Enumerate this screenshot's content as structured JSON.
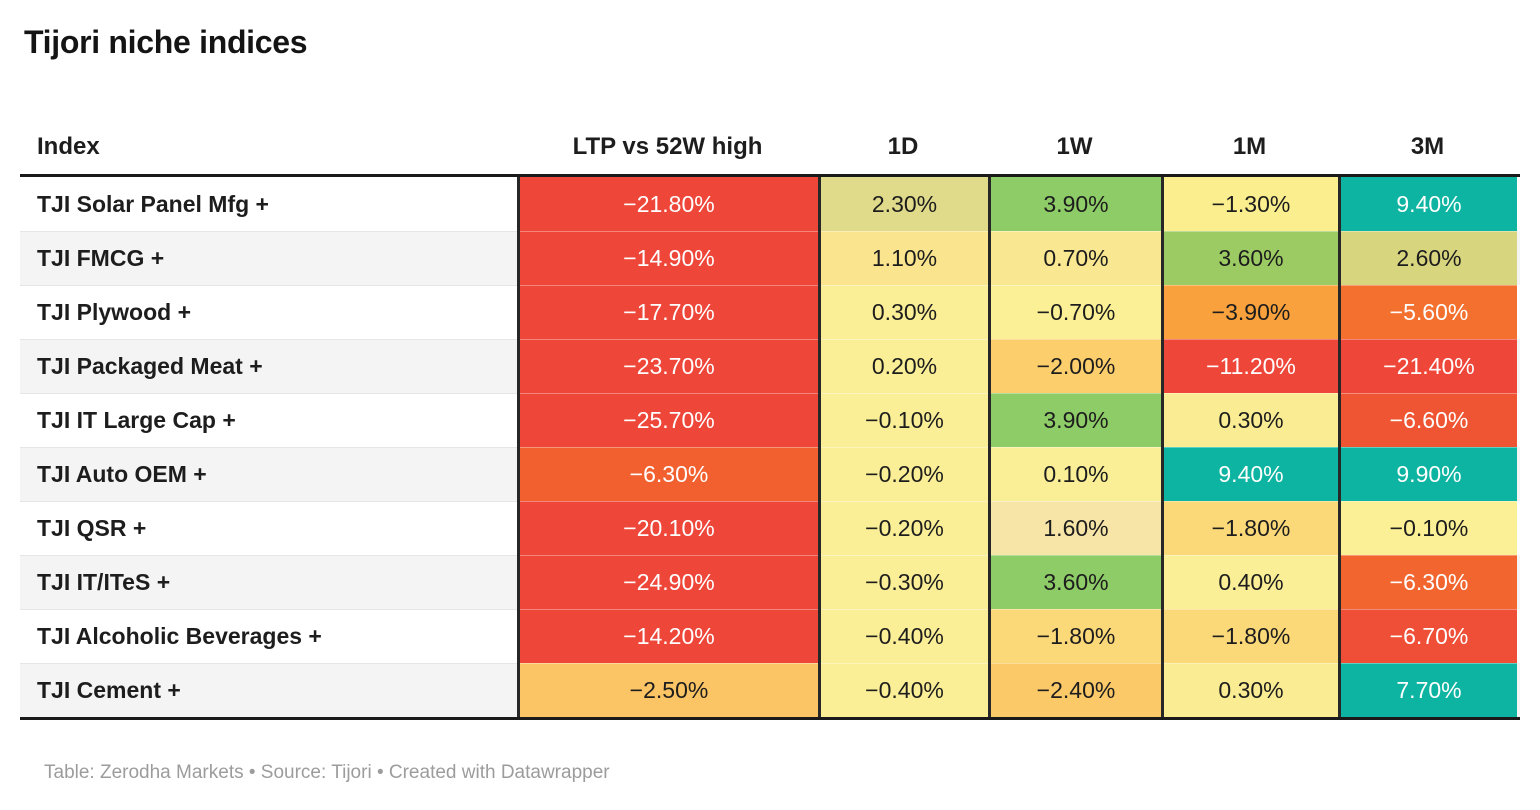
{
  "title": "Tijori niche indices",
  "footer": "Table: Zerodha Markets • Source: Tijori • Created with Datawrapper",
  "accent_colors": {
    "strong_negative": "#ee4639",
    "negative_orange": "#f2602f",
    "mild_negative_amber": "#fbc464",
    "neutral_yellow": "#faee96",
    "positive_khaki": "#e0db8b",
    "positive_green": "#8ecc68",
    "strong_positive_teal": "#0db4a1",
    "header_rule": "#1a1a1a",
    "alt_row": "#f4f4f4",
    "footer_text": "#9c9c9c"
  },
  "table": {
    "columns": [
      "Index",
      "LTP vs 52W high",
      "1D",
      "1W",
      "1M",
      "3M"
    ],
    "rows": [
      {
        "index": "TJI Solar Panel Mfg +",
        "cells": [
          {
            "v": "−21.80%",
            "bg": "#ee4639",
            "fg": "#ffffff"
          },
          {
            "v": "2.30%",
            "bg": "#e0db8b",
            "fg": "#1d1d1d"
          },
          {
            "v": "3.90%",
            "bg": "#8ecc68",
            "fg": "#1d1d1d"
          },
          {
            "v": "−1.30%",
            "bg": "#faee8e",
            "fg": "#1d1d1d"
          },
          {
            "v": "9.40%",
            "bg": "#0db4a1",
            "fg": "#ffffff"
          }
        ]
      },
      {
        "index": "TJI FMCG +",
        "cells": [
          {
            "v": "−14.90%",
            "bg": "#ee4639",
            "fg": "#ffffff"
          },
          {
            "v": "1.10%",
            "bg": "#fae48e",
            "fg": "#1d1d1d"
          },
          {
            "v": "0.70%",
            "bg": "#fae791",
            "fg": "#1d1d1d"
          },
          {
            "v": "3.60%",
            "bg": "#9ccb63",
            "fg": "#1d1d1d"
          },
          {
            "v": "2.60%",
            "bg": "#d8d57f",
            "fg": "#1d1d1d"
          }
        ]
      },
      {
        "index": "TJI Plywood +",
        "cells": [
          {
            "v": "−17.70%",
            "bg": "#ee4639",
            "fg": "#ffffff"
          },
          {
            "v": "0.30%",
            "bg": "#faee96",
            "fg": "#1d1d1d"
          },
          {
            "v": "−0.70%",
            "bg": "#fbf095",
            "fg": "#1d1d1d"
          },
          {
            "v": "−3.90%",
            "bg": "#f9a13c",
            "fg": "#1d1d1d"
          },
          {
            "v": "−5.60%",
            "bg": "#f3702f",
            "fg": "#ffffff"
          }
        ]
      },
      {
        "index": "TJI Packaged Meat +",
        "cells": [
          {
            "v": "−23.70%",
            "bg": "#ee4639",
            "fg": "#ffffff"
          },
          {
            "v": "0.20%",
            "bg": "#faee96",
            "fg": "#1d1d1d"
          },
          {
            "v": "−2.00%",
            "bg": "#fcce6c",
            "fg": "#1d1d1d"
          },
          {
            "v": "−11.20%",
            "bg": "#ee4639",
            "fg": "#ffffff"
          },
          {
            "v": "−21.40%",
            "bg": "#ee4639",
            "fg": "#ffffff"
          }
        ]
      },
      {
        "index": "TJI IT Large Cap +",
        "cells": [
          {
            "v": "−25.70%",
            "bg": "#ee4639",
            "fg": "#ffffff"
          },
          {
            "v": "−0.10%",
            "bg": "#faee96",
            "fg": "#1d1d1d"
          },
          {
            "v": "3.90%",
            "bg": "#8ecc68",
            "fg": "#1d1d1d"
          },
          {
            "v": "0.30%",
            "bg": "#faec92",
            "fg": "#1d1d1d"
          },
          {
            "v": "−6.60%",
            "bg": "#ef5532",
            "fg": "#ffffff"
          }
        ]
      },
      {
        "index": "TJI Auto OEM +",
        "cells": [
          {
            "v": "−6.30%",
            "bg": "#f2602f",
            "fg": "#ffffff"
          },
          {
            "v": "−0.20%",
            "bg": "#faee96",
            "fg": "#1d1d1d"
          },
          {
            "v": "0.10%",
            "bg": "#faee96",
            "fg": "#1d1d1d"
          },
          {
            "v": "9.40%",
            "bg": "#0db4a1",
            "fg": "#ffffff"
          },
          {
            "v": "9.90%",
            "bg": "#0db4a1",
            "fg": "#ffffff"
          }
        ]
      },
      {
        "index": "TJI QSR +",
        "cells": [
          {
            "v": "−20.10%",
            "bg": "#ee4639",
            "fg": "#ffffff"
          },
          {
            "v": "−0.20%",
            "bg": "#faee96",
            "fg": "#1d1d1d"
          },
          {
            "v": "1.60%",
            "bg": "#f7e5a8",
            "fg": "#1d1d1d"
          },
          {
            "v": "−1.80%",
            "bg": "#fbd878",
            "fg": "#1d1d1d"
          },
          {
            "v": "−0.10%",
            "bg": "#fbf095",
            "fg": "#1d1d1d"
          }
        ]
      },
      {
        "index": "TJI IT/ITeS +",
        "cells": [
          {
            "v": "−24.90%",
            "bg": "#ee4639",
            "fg": "#ffffff"
          },
          {
            "v": "−0.30%",
            "bg": "#faee96",
            "fg": "#1d1d1d"
          },
          {
            "v": "3.60%",
            "bg": "#8ecc68",
            "fg": "#1d1d1d"
          },
          {
            "v": "0.40%",
            "bg": "#faee96",
            "fg": "#1d1d1d"
          },
          {
            "v": "−6.30%",
            "bg": "#f2652f",
            "fg": "#ffffff"
          }
        ]
      },
      {
        "index": "TJI Alcoholic Beverages +",
        "cells": [
          {
            "v": "−14.20%",
            "bg": "#ee4639",
            "fg": "#ffffff"
          },
          {
            "v": "−0.40%",
            "bg": "#faee96",
            "fg": "#1d1d1d"
          },
          {
            "v": "−1.80%",
            "bg": "#fbd878",
            "fg": "#1d1d1d"
          },
          {
            "v": "−1.80%",
            "bg": "#fbd878",
            "fg": "#1d1d1d"
          },
          {
            "v": "−6.70%",
            "bg": "#ee4f36",
            "fg": "#ffffff"
          }
        ]
      },
      {
        "index": "TJI Cement +",
        "cells": [
          {
            "v": "−2.50%",
            "bg": "#fbc464",
            "fg": "#1d1d1d"
          },
          {
            "v": "−0.40%",
            "bg": "#faee96",
            "fg": "#1d1d1d"
          },
          {
            "v": "−2.40%",
            "bg": "#fcc968",
            "fg": "#1d1d1d"
          },
          {
            "v": "0.30%",
            "bg": "#faec92",
            "fg": "#1d1d1d"
          },
          {
            "v": "7.70%",
            "bg": "#0db4a1",
            "fg": "#ffffff"
          }
        ]
      }
    ]
  },
  "chart_data": {
    "type": "table",
    "title": "Tijori niche indices",
    "columns": [
      "Index",
      "LTP vs 52W high",
      "1D",
      "1W",
      "1M",
      "3M"
    ],
    "rows": [
      [
        "TJI Solar Panel Mfg +",
        -21.8,
        2.3,
        3.9,
        -1.3,
        9.4
      ],
      [
        "TJI FMCG +",
        -14.9,
        1.1,
        0.7,
        3.6,
        2.6
      ],
      [
        "TJI Plywood +",
        -17.7,
        0.3,
        -0.7,
        -3.9,
        -5.6
      ],
      [
        "TJI Packaged Meat +",
        -23.7,
        0.2,
        -2.0,
        -11.2,
        -21.4
      ],
      [
        "TJI IT Large Cap +",
        -25.7,
        -0.1,
        3.9,
        0.3,
        -6.6
      ],
      [
        "TJI Auto OEM +",
        -6.3,
        -0.2,
        0.1,
        9.4,
        9.9
      ],
      [
        "TJI QSR +",
        -20.1,
        -0.2,
        1.6,
        -1.8,
        -0.1
      ],
      [
        "TJI IT/ITeS +",
        -24.9,
        -0.3,
        3.6,
        0.4,
        -6.3
      ],
      [
        "TJI Alcoholic Beverages +",
        -14.2,
        -0.4,
        -1.8,
        -1.8,
        -6.7
      ],
      [
        "TJI Cement +",
        -2.5,
        -0.4,
        -2.4,
        0.3,
        7.7
      ]
    ],
    "notes": "Heatmap-colored table: red = strongly negative, yellow = near zero, green = positive, teal = strongly positive",
    "footer": "Table: Zerodha Markets • Source: Tijori • Created with Datawrapper"
  }
}
